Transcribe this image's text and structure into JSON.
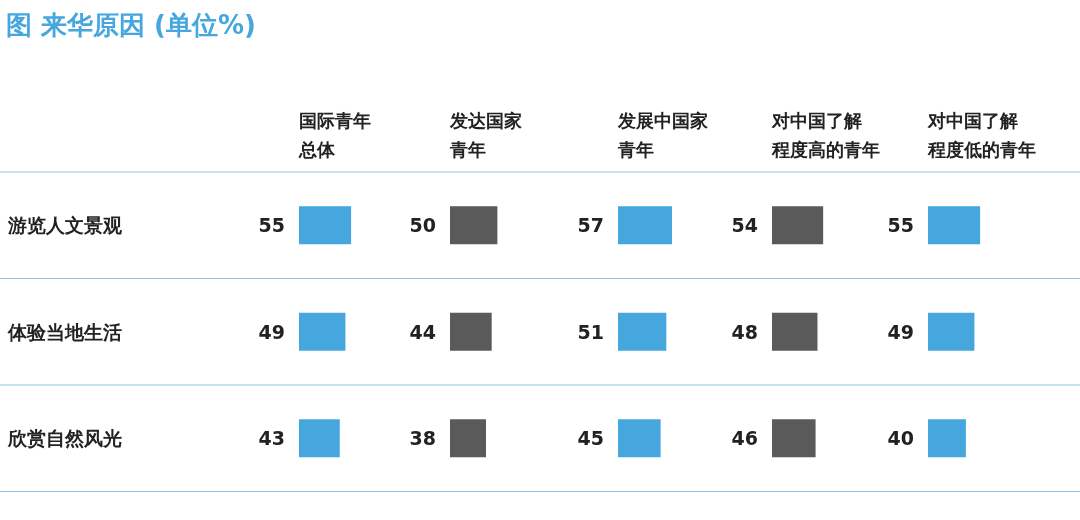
{
  "chart_data": [
    {
      "type": "bar",
      "orientation": "horizontal",
      "title": "国际青年总体",
      "annotations": [
        "图  来华原因 (单位%)"
      ],
      "categories": [
        "游览人文景观",
        "体验当地生活",
        "欣赏自然风光"
      ],
      "values": [
        55,
        49,
        43
      ],
      "color": "#46a6de",
      "data_labels": true,
      "grid": "y",
      "tick_labels": "y"
    },
    {
      "type": "bar",
      "orientation": "horizontal",
      "title": "发达国家青年",
      "values": [
        50,
        44,
        38
      ],
      "color": "#5a5a5a",
      "data_labels": true,
      "grid": "y",
      "tick_labels": false
    },
    {
      "type": "bar",
      "orientation": "horizontal",
      "title": "发展中国家青年",
      "values": [
        57,
        51,
        45
      ],
      "color": "#46a6de",
      "data_labels": true,
      "grid": "y",
      "tick_labels": false
    },
    {
      "type": "bar",
      "orientation": "horizontal",
      "title": "对中国了解程度高的青年",
      "values": [
        54,
        48,
        46
      ],
      "color": "#5a5a5a",
      "data_labels": true,
      "grid": "y",
      "tick_labels": false
    },
    {
      "type": "bar",
      "orientation": "horizontal",
      "title": "对中国了解程度低的青年",
      "values": [
        55,
        49,
        40
      ],
      "color": "#46a6de",
      "data_labels": true,
      "grid": "y",
      "tick_labels": false
    }
  ]
}
